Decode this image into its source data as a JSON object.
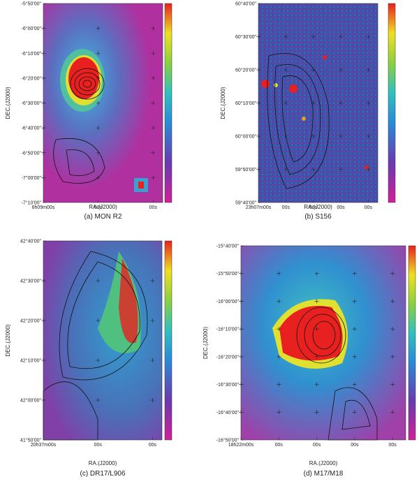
{
  "panels": [
    {
      "caption": "(a) MON R2",
      "x_label": "RA.(J2000)",
      "y_label": "DEC.(J2000)",
      "y_ticks": [
        "-5°50'00\"",
        "-6°00'00\"",
        "-6°10'00\"",
        "-6°20'00\"",
        "-6°30'00\"",
        "-6°40'00\"",
        "-6°50'00\"",
        "-7°00'00\"",
        "-7°10'00\""
      ],
      "x_ticks": [
        "6h09m00s",
        "00s",
        "00s"
      ]
    },
    {
      "caption": "(b) S156",
      "x_label": "RA.(J2000)",
      "y_label": "DEC.(J2000)",
      "y_ticks": [
        "60°40'00\"",
        "60°30'00\"",
        "60°20'00\"",
        "60°10'00\"",
        "60°00'00\"",
        "59°50'00\"",
        "59°40'00\""
      ],
      "x_ticks": [
        "23h07m00s",
        "00s",
        "00s",
        "00s",
        "00s"
      ]
    },
    {
      "caption": "(c) DR17/L906",
      "x_label": "RA.(J2000)",
      "y_label": "DEC.(J2000)",
      "y_ticks": [
        "42°40'00\"",
        "42°30'00\"",
        "42°20'00\"",
        "42°10'00\"",
        "42°00'00\"",
        "41°50'00\""
      ],
      "x_ticks": [
        "20h37m00s",
        "00s",
        "00s"
      ]
    },
    {
      "caption": "(d) M17/M18",
      "x_label": "RA.(J2000)",
      "y_label": "DEC.(J2000)",
      "y_ticks": [
        "-15°40'00\"",
        "-15°50'00\"",
        "-16°00'00\"",
        "-16°10'00\"",
        "-16°20'00\"",
        "-16°30'00\"",
        "-16°40'00\"",
        "-16°50'00\""
      ],
      "x_ticks": [
        "18h22m00s",
        "00s",
        "00s",
        "00s",
        "00s"
      ]
    }
  ]
}
